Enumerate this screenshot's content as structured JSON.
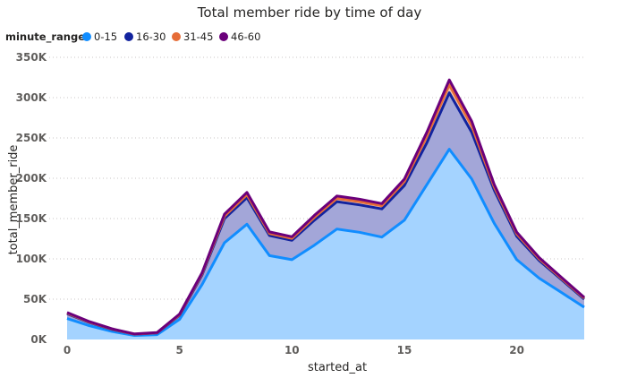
{
  "chart_data": {
    "type": "area",
    "title": "Total member ride by time of day",
    "xlabel": "started_at",
    "ylabel": "total_member_ride",
    "legend_title": "minute_range",
    "legend_position": "top-left",
    "stacked": true,
    "x": [
      0,
      1,
      2,
      3,
      4,
      5,
      6,
      7,
      8,
      9,
      10,
      11,
      12,
      13,
      14,
      15,
      16,
      17,
      18,
      19,
      20,
      21,
      22,
      23
    ],
    "xlim": [
      0,
      23
    ],
    "ylim": [
      0,
      350000
    ],
    "x_ticks": [
      0,
      5,
      10,
      15,
      20
    ],
    "x_tick_labels": [
      "0",
      "5",
      "10",
      "15",
      "20"
    ],
    "y_ticks": [
      0,
      50000,
      100000,
      150000,
      200000,
      250000,
      300000,
      350000
    ],
    "y_tick_labels": [
      "0K",
      "50K",
      "100K",
      "150K",
      "200K",
      "250K",
      "300K",
      "350K"
    ],
    "grid": true,
    "series": [
      {
        "name": "0-15",
        "color": "#118DFF",
        "fill": "#A4D3FF",
        "values": [
          26000,
          17000,
          10000,
          5000,
          6000,
          25000,
          68000,
          120000,
          143000,
          104000,
          99000,
          117000,
          137000,
          133000,
          127000,
          148000,
          192000,
          236000,
          199000,
          144000,
          99000,
          76000,
          58000,
          40000
        ]
      },
      {
        "name": "16-30",
        "color": "#12239E",
        "fill": "#A3A6D8",
        "values": [
          6000,
          4000,
          2500,
          1500,
          2000,
          5000,
          12000,
          30000,
          33000,
          25000,
          24000,
          31000,
          34000,
          34000,
          35000,
          43000,
          52000,
          70000,
          58000,
          41000,
          29000,
          22000,
          16000,
          10000
        ]
      },
      {
        "name": "31-45",
        "color": "#E66C37",
        "fill": "#F6C9B3",
        "values": [
          800,
          600,
          400,
          200,
          300,
          800,
          1500,
          3000,
          3500,
          2500,
          2500,
          3500,
          4000,
          4000,
          4000,
          5000,
          8000,
          10000,
          8000,
          4000,
          3000,
          2000,
          1500,
          1200
        ]
      },
      {
        "name": "46-60",
        "color": "#6B007B",
        "fill": "#C39FC9",
        "values": [
          700,
          500,
          300,
          200,
          300,
          700,
          1200,
          2500,
          3000,
          2000,
          2000,
          2500,
          3000,
          3000,
          2500,
          3000,
          5000,
          6000,
          5500,
          3000,
          2000,
          1500,
          1200,
          1000
        ]
      }
    ]
  }
}
